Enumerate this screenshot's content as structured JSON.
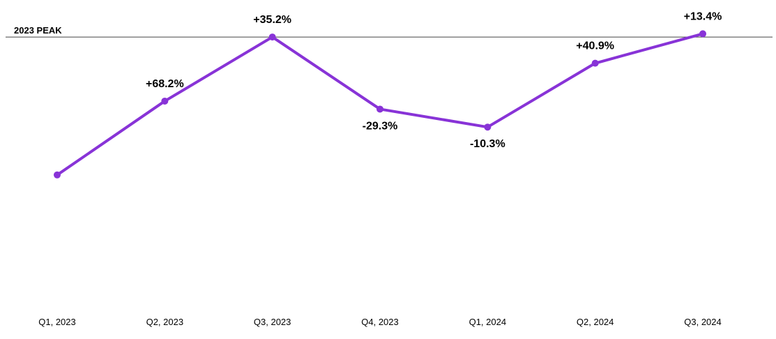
{
  "colors": {
    "series": "#8833d7",
    "reference_line": "#444444",
    "text": "#000000",
    "background": "#ffffff"
  },
  "chart_data": {
    "type": "line",
    "title": "",
    "xlabel": "",
    "ylabel": "",
    "grid": false,
    "legend": "none",
    "categories": [
      "Q1, 2023",
      "Q2, 2023",
      "Q3, 2023",
      "Q4, 2023",
      "Q1, 2024",
      "Q2, 2024",
      "Q3, 2024"
    ],
    "series": [
      {
        "values": [
          100,
          168.2,
          227.4,
          160.8,
          144.2,
          203.2,
          230.4
        ],
        "data_labels": [
          "",
          "+68.2%",
          "+35.2%",
          "-29.3%",
          "-10.3%",
          "+40.9%",
          "+13.4%"
        ],
        "label_positions": [
          "none",
          "above",
          "above",
          "below",
          "below",
          "above",
          "above"
        ]
      }
    ],
    "ylim": [
      0,
      250
    ],
    "reference_lines": [
      {
        "label": "2023 PEAK",
        "value": 227.4
      }
    ]
  }
}
